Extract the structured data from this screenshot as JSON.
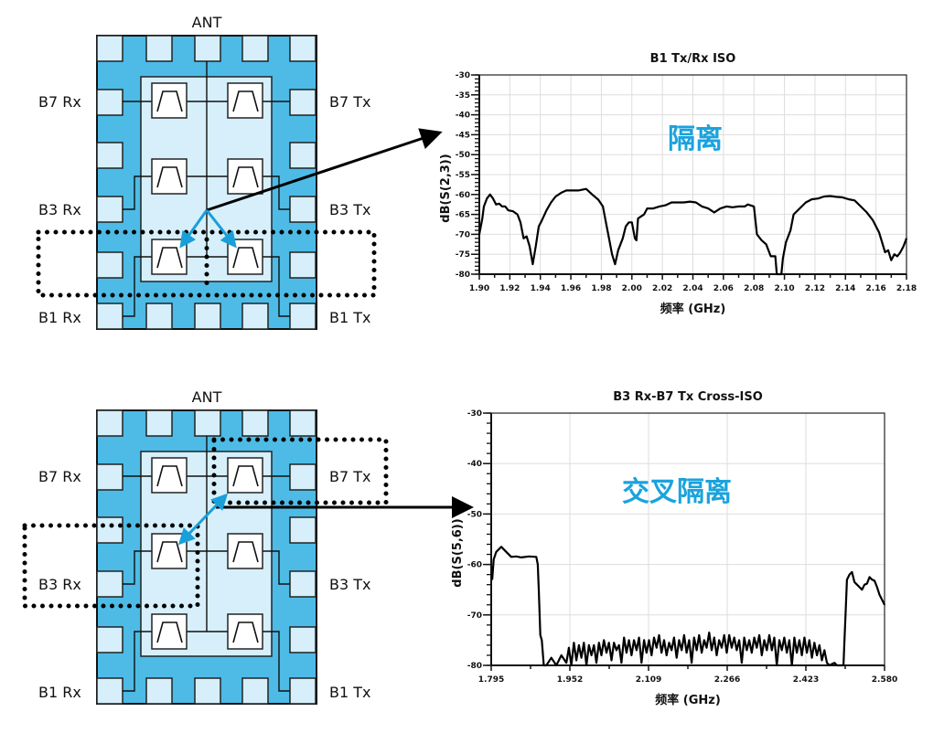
{
  "colors": {
    "chip_fill": "#4dbbe6",
    "pad_fill": "#d6effa",
    "accent_arrow": "#1a9fd8",
    "annotation_text": "#1aa3dd",
    "trace": "#000000"
  },
  "diagrams": [
    {
      "ant": "ANT",
      "b7rx": "B7 Rx",
      "b7tx": "B7 Tx",
      "b3rx": "B3 Rx",
      "b3tx": "B3 Tx",
      "b1rx": "B1 Rx",
      "b1tx": "B1 Tx",
      "highlight": "B1 Rx / B1 Tx filters"
    },
    {
      "ant": "ANT",
      "b7rx": "B7 Rx",
      "b7tx": "B7 Tx",
      "b3rx": "B3 Rx",
      "b3tx": "B3 Tx",
      "b1rx": "B1 Rx",
      "b1tx": "B1 Tx",
      "highlight": "B3 Rx and B7 Tx filters"
    }
  ],
  "chart_data": [
    {
      "type": "line",
      "title": "B1 Tx/Rx ISO",
      "annotation": "隔离",
      "xlabel": "频率 (GHz)",
      "ylabel": "dB(S(2,3))",
      "xlim": [
        1.9,
        2.18
      ],
      "ylim": [
        -80,
        -30
      ],
      "xticks": [
        "1.90",
        "1.92",
        "1.94",
        "1.96",
        "1.98",
        "2.00",
        "2.02",
        "2.04",
        "2.06",
        "2.08",
        "2.10",
        "2.12",
        "2.14",
        "2.16",
        "2.18"
      ],
      "yticks": [
        "-30",
        "-35",
        "-40",
        "-45",
        "-50",
        "-55",
        "-60",
        "-65",
        "-70",
        "-75",
        "-80"
      ],
      "grid": true,
      "x": [
        1.9,
        1.902,
        1.903,
        1.905,
        1.907,
        1.909,
        1.911,
        1.913,
        1.915,
        1.917,
        1.919,
        1.922,
        1.925,
        1.927,
        1.929,
        1.931,
        1.933,
        1.935,
        1.937,
        1.939,
        1.941,
        1.944,
        1.947,
        1.95,
        1.954,
        1.957,
        1.96,
        1.965,
        1.97,
        1.974,
        1.978,
        1.981,
        1.983,
        1.985,
        1.987,
        1.989,
        1.991,
        1.994,
        1.996,
        1.998,
        2.0,
        2.002,
        2.003,
        2.004,
        2.006,
        2.008,
        2.01,
        2.014,
        2.018,
        2.022,
        2.026,
        2.03,
        2.034,
        2.038,
        2.042,
        2.046,
        2.05,
        2.054,
        2.058,
        2.062,
        2.066,
        2.07,
        2.074,
        2.076,
        2.08,
        2.082,
        2.085,
        2.088,
        2.091,
        2.094,
        2.095,
        2.098,
        2.099,
        2.101,
        2.104,
        2.106,
        2.11,
        2.114,
        2.118,
        2.122,
        2.126,
        2.13,
        2.134,
        2.138,
        2.142,
        2.146,
        2.15,
        2.154,
        2.158,
        2.162,
        2.166,
        2.168,
        2.17,
        2.172,
        2.174,
        2.176,
        2.178,
        2.18
      ],
      "y": [
        -70,
        -66,
        -63,
        -61,
        -60,
        -61,
        -62.5,
        -62.3,
        -63,
        -63,
        -64,
        -64.2,
        -65,
        -67,
        -71,
        -70.5,
        -73,
        -77.5,
        -73,
        -68,
        -66.5,
        -64,
        -62,
        -60.5,
        -59.5,
        -59,
        -59,
        -59,
        -58.6,
        -60,
        -61.3,
        -63,
        -67,
        -71,
        -75,
        -77.5,
        -74,
        -71,
        -68,
        -67,
        -67,
        -71,
        -71.5,
        -66,
        -65.5,
        -65,
        -63.5,
        -63.5,
        -63,
        -62.7,
        -62,
        -62,
        -62,
        -61.8,
        -62,
        -63,
        -63.5,
        -64.5,
        -63.5,
        -63,
        -63.2,
        -63,
        -63,
        -62.5,
        -63,
        -70,
        -71.5,
        -72.5,
        -75.5,
        -75.5,
        -80,
        -80,
        -76,
        -72,
        -69,
        -65,
        -63.5,
        -62,
        -61.2,
        -61,
        -60.5,
        -60.4,
        -60.6,
        -60.7,
        -61.2,
        -61.5,
        -63,
        -64.5,
        -66.5,
        -69.5,
        -74.5,
        -74,
        -76.5,
        -75,
        -75.5,
        -74.5,
        -73,
        -71
      ]
    },
    {
      "type": "line",
      "title": "B3 Rx-B7 Tx Cross-ISO",
      "annotation": "交叉隔离",
      "xlabel": "频率 (GHz)",
      "ylabel": "dB(S(5,6))",
      "xlim": [
        1.795,
        2.58
      ],
      "ylim": [
        -80,
        -30
      ],
      "xticks": [
        "1.795",
        "1.952",
        "2.109",
        "2.266",
        "2.423",
        "2.580"
      ],
      "yticks": [
        "-30",
        "-40",
        "-50",
        "-60",
        "-70",
        "-80"
      ],
      "grid": true,
      "x": [
        1.797,
        1.8,
        1.805,
        1.815,
        1.825,
        1.835,
        1.845,
        1.855,
        1.87,
        1.885,
        1.888,
        1.89,
        1.893,
        1.896,
        1.9,
        1.905,
        1.915,
        1.925,
        1.935,
        1.945,
        1.95,
        1.955,
        1.96,
        1.965,
        1.97,
        1.975,
        1.98,
        1.985,
        1.99,
        1.995,
        2.0,
        2.005,
        2.01,
        2.015,
        2.02,
        2.025,
        2.03,
        2.035,
        2.04,
        2.045,
        2.05,
        2.055,
        2.06,
        2.065,
        2.07,
        2.075,
        2.08,
        2.085,
        2.09,
        2.095,
        2.1,
        2.105,
        2.11,
        2.115,
        2.12,
        2.125,
        2.13,
        2.135,
        2.14,
        2.145,
        2.15,
        2.155,
        2.16,
        2.165,
        2.17,
        2.175,
        2.18,
        2.185,
        2.19,
        2.195,
        2.2,
        2.205,
        2.21,
        2.215,
        2.22,
        2.225,
        2.23,
        2.235,
        2.24,
        2.245,
        2.25,
        2.255,
        2.26,
        2.265,
        2.27,
        2.275,
        2.28,
        2.285,
        2.29,
        2.295,
        2.3,
        2.305,
        2.31,
        2.315,
        2.32,
        2.325,
        2.33,
        2.335,
        2.34,
        2.345,
        2.35,
        2.355,
        2.36,
        2.365,
        2.37,
        2.375,
        2.38,
        2.385,
        2.39,
        2.395,
        2.4,
        2.405,
        2.41,
        2.415,
        2.42,
        2.425,
        2.43,
        2.435,
        2.44,
        2.445,
        2.45,
        2.455,
        2.46,
        2.465,
        2.47,
        2.48,
        2.485,
        2.49,
        2.498,
        2.5,
        2.503,
        2.505,
        2.51,
        2.515,
        2.52,
        2.525,
        2.53,
        2.535,
        2.54,
        2.545,
        2.55,
        2.555,
        2.56,
        2.565,
        2.57,
        2.575,
        2.58
      ],
      "y": [
        -63,
        -59,
        -57.5,
        -56.5,
        -57.5,
        -58.5,
        -58.4,
        -58.6,
        -58.4,
        -58.5,
        -60,
        -65,
        -74,
        -75,
        -80,
        -80,
        -78.5,
        -80,
        -78,
        -79.5,
        -76.5,
        -80,
        -75.5,
        -79,
        -76,
        -78.5,
        -75.5,
        -80,
        -76,
        -78,
        -76,
        -79.5,
        -75.5,
        -78,
        -75,
        -77.5,
        -75.5,
        -79,
        -75.5,
        -77,
        -76,
        -79.5,
        -74.5,
        -77.5,
        -75,
        -78,
        -75,
        -77,
        -74.5,
        -79.5,
        -75,
        -77.5,
        -75,
        -78,
        -74.5,
        -76.5,
        -74,
        -77.5,
        -75,
        -78,
        -75.5,
        -77,
        -74.5,
        -78.5,
        -75,
        -77,
        -74,
        -77.5,
        -75,
        -79.5,
        -74.5,
        -77,
        -74,
        -77.5,
        -75,
        -76.5,
        -73.5,
        -77,
        -74.5,
        -78,
        -75,
        -76.5,
        -74,
        -77.5,
        -74,
        -76.5,
        -74.5,
        -77,
        -75,
        -79.5,
        -74.5,
        -77,
        -75,
        -77.5,
        -74.5,
        -76.5,
        -74,
        -78,
        -75,
        -77,
        -74,
        -77,
        -74.5,
        -80,
        -75,
        -77,
        -74.5,
        -77.5,
        -75,
        -80,
        -74.5,
        -77.5,
        -75,
        -78,
        -74.5,
        -77.5,
        -75,
        -78.5,
        -75.5,
        -78,
        -76,
        -79,
        -77,
        -79.5,
        -80,
        -79.5,
        -80,
        -80,
        -80,
        -75,
        -68,
        -63,
        -62,
        -61.5,
        -63.5,
        -64,
        -64.5,
        -65,
        -64,
        -63.8,
        -62.5,
        -63,
        -63.2,
        -64.5,
        -66,
        -67,
        -68
      ]
    }
  ]
}
